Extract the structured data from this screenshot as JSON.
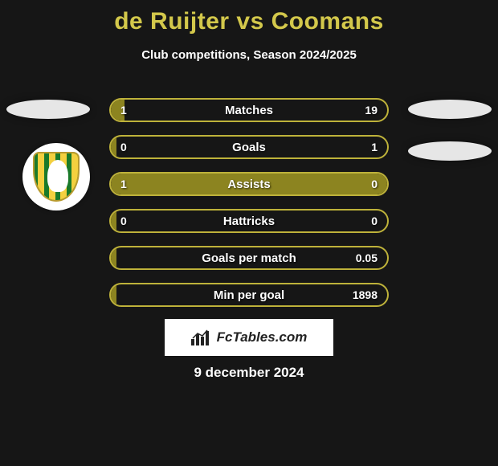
{
  "title_color": "#d3c84b",
  "title": "de Ruijter vs Coomans",
  "subtitle": "Club competitions, Season 2024/2025",
  "accent_olive": "#8c8420",
  "accent_border": "#beb23a",
  "rows": [
    {
      "label": "Matches",
      "left": "1",
      "right": "19",
      "fill_pct": 5
    },
    {
      "label": "Goals",
      "left": "0",
      "right": "1",
      "fill_pct": 2
    },
    {
      "label": "Assists",
      "left": "1",
      "right": "0",
      "fill_pct": 100
    },
    {
      "label": "Hattricks",
      "left": "0",
      "right": "0",
      "fill_pct": 2
    },
    {
      "label": "Goals per match",
      "left": "",
      "right": "0.05",
      "fill_pct": 2
    },
    {
      "label": "Min per goal",
      "left": "",
      "right": "1898",
      "fill_pct": 2
    }
  ],
  "branding": "FcTables.com",
  "date": "9 december 2024",
  "badge": {
    "stripe_color": "#f4d03f",
    "field_color": "#1a7a2a",
    "border_color": "#b89a2e"
  }
}
